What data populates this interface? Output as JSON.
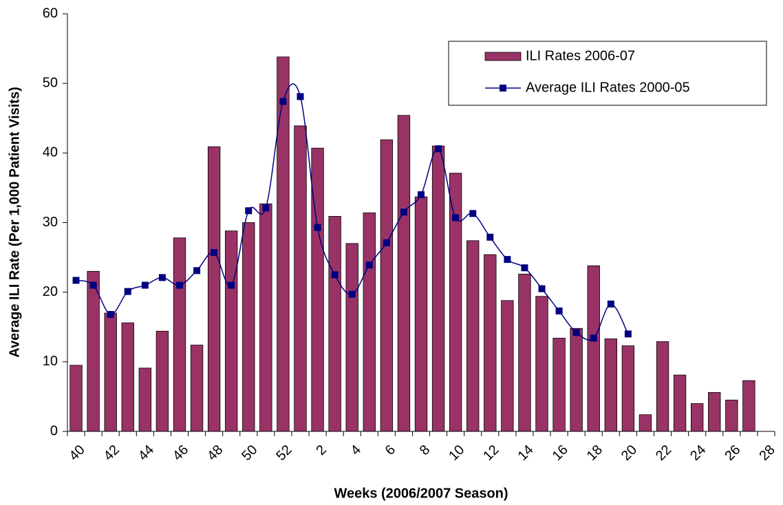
{
  "chart_data": {
    "type": "bar-line",
    "x_label": "Weeks (2006/2007 Season)",
    "y_label": "Average ILI Rate (Per 1,000 Patient Visits)",
    "categories": [
      "40",
      null,
      "42",
      null,
      "44",
      null,
      "46",
      null,
      "48",
      null,
      "50",
      null,
      "52",
      null,
      "2",
      null,
      "4",
      null,
      "6",
      null,
      "8",
      null,
      "10",
      null,
      "12",
      null,
      "14",
      null,
      "16",
      null,
      "18",
      null,
      "20",
      null,
      "22",
      null,
      "24",
      null,
      "26",
      null,
      "28"
    ],
    "series": [
      {
        "name": "ILI Rates 2006-07",
        "type": "bar",
        "color": "#993366",
        "values": [
          9.5,
          23,
          17,
          15.6,
          9.1,
          14.4,
          27.8,
          12.4,
          40.9,
          28.8,
          30,
          32.7,
          53.8,
          43.9,
          40.7,
          30.9,
          27,
          31.4,
          41.9,
          45.4,
          33.7,
          41,
          37.1,
          27.4,
          25.4,
          18.8,
          22.6,
          19.4,
          13.4,
          14.8,
          23.8,
          13.3,
          12.3,
          2.4,
          12.9,
          8.1,
          4,
          5.6,
          4.5,
          7.3,
          null
        ]
      },
      {
        "name": "Average ILI Rates 2000-05",
        "type": "line",
        "color": "#000080",
        "values": [
          21.7,
          21,
          16.8,
          20.1,
          21,
          22.1,
          21,
          23.1,
          25.7,
          21,
          31.7,
          32.1,
          47.4,
          48.1,
          29.3,
          22.5,
          19.7,
          23.9,
          27.1,
          31.5,
          34,
          40.6,
          30.7,
          31.3,
          27.9,
          24.7,
          23.5,
          20.5,
          17.3,
          14.2,
          13.4,
          18.3,
          14,
          null,
          null,
          null,
          null,
          null,
          null,
          null,
          null
        ]
      }
    ],
    "ylim": [
      0,
      60
    ],
    "yticks": [
      0,
      10,
      20,
      30,
      40,
      50,
      60
    ],
    "grid": false,
    "legend": "top-right"
  }
}
